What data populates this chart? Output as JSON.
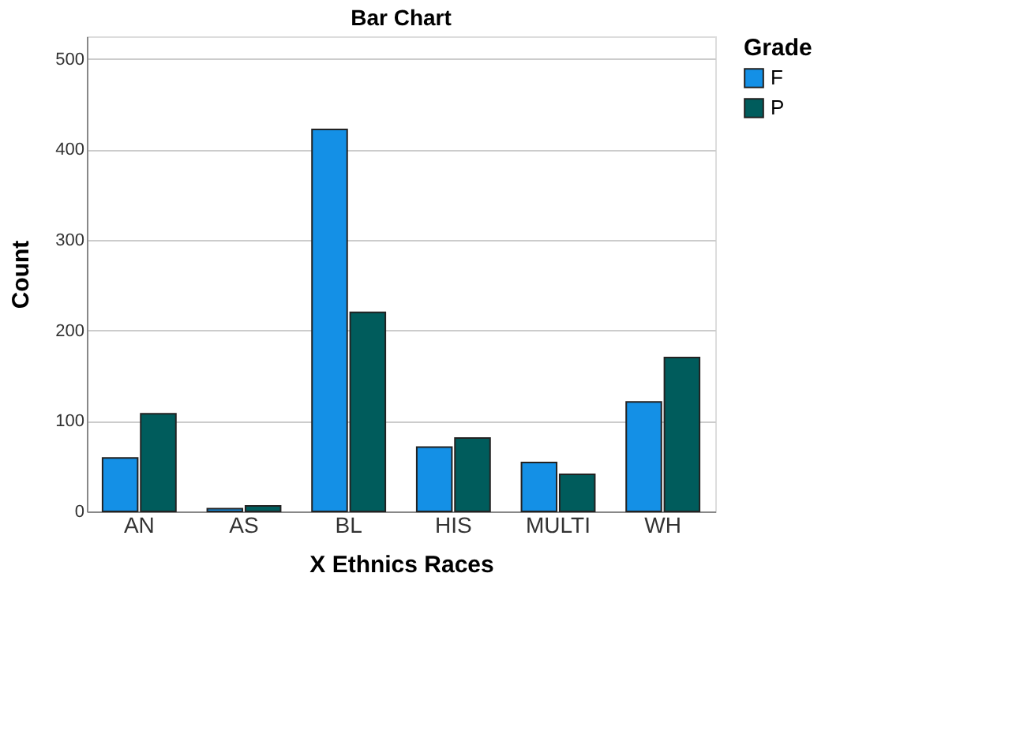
{
  "chart_data": {
    "type": "bar",
    "title": "Bar Chart",
    "xlabel": "X Ethnics Races",
    "ylabel": "Count",
    "legend_title": "Grade",
    "categories": [
      "AN",
      "AS",
      "BL",
      "HIS",
      "MULTI",
      "WH"
    ],
    "series": [
      {
        "name": "F",
        "color": "#1490e6",
        "values": [
          59,
          3,
          422,
          71,
          54,
          121
        ]
      },
      {
        "name": "P",
        "color": "#005c5c",
        "values": [
          108,
          6,
          220,
          81,
          41,
          170
        ]
      }
    ],
    "ylim": [
      0,
      525
    ],
    "yticks": [
      0,
      100,
      200,
      300,
      400,
      500
    ],
    "grid": "y",
    "legend": "top right"
  }
}
